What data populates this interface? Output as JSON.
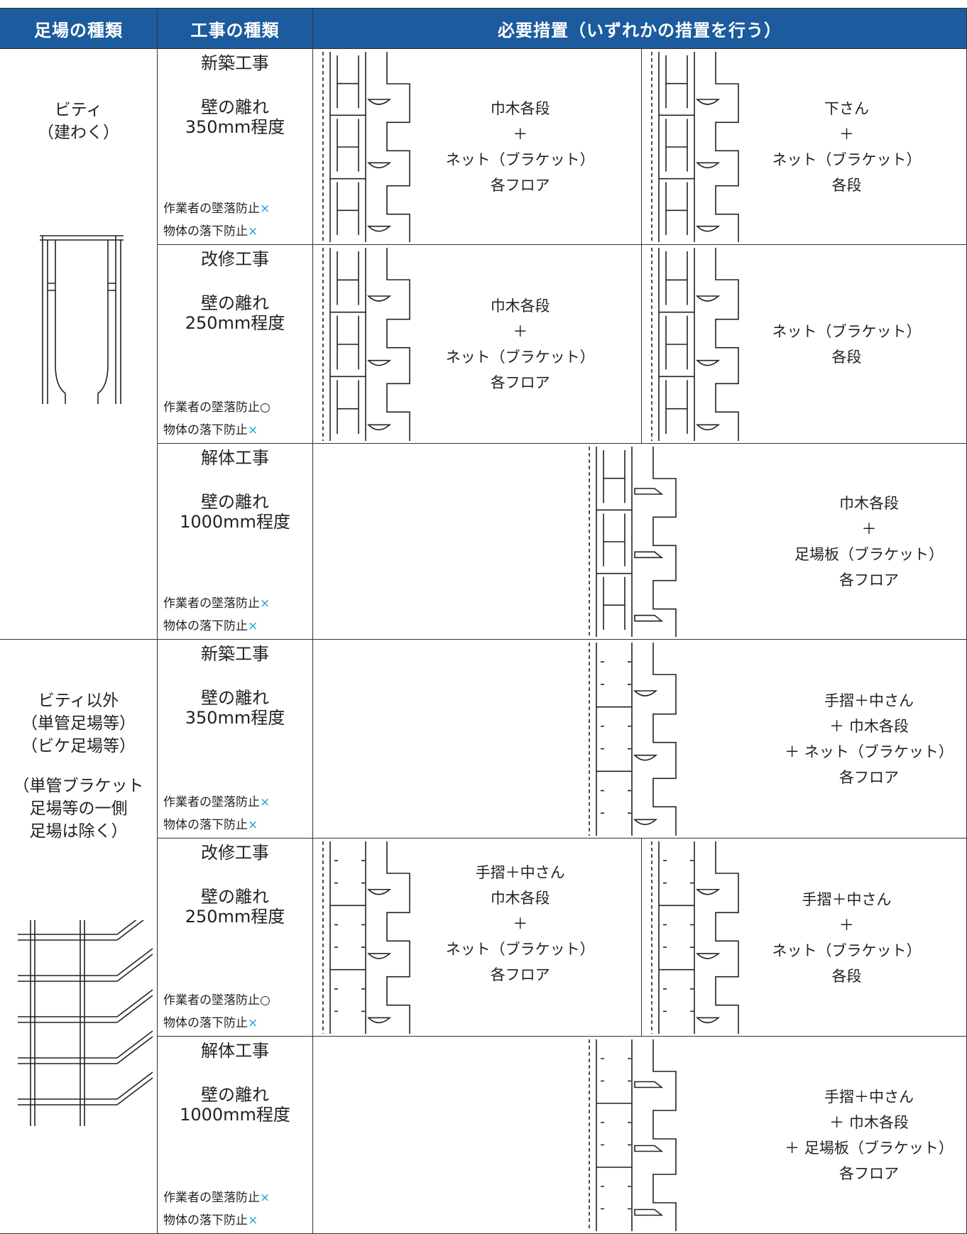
{
  "header": {
    "scaffold_type": "足場の種類",
    "work_type": "工事の種類",
    "measures": "必要措置（いずれかの措置を行う）"
  },
  "groups": [
    {
      "scaffold": [
        [
          "ビティ",
          "（建わく）"
        ]
      ],
      "rows": [
        {
          "work": "新築工事",
          "gap_label": "壁の離れ",
          "gap": "350mm程度",
          "worker": "作業者の墜落防止",
          "worker_mark": "×",
          "object": "物体の落下防止",
          "object_mark": "×",
          "measures": [
            [
              "巾木各段",
              "＋",
              "ネット（ブラケット）",
              "各フロア"
            ],
            [
              "下さん",
              "＋",
              "ネット（ブラケット）",
              "各段"
            ]
          ]
        },
        {
          "work": "改修工事",
          "gap_label": "壁の離れ",
          "gap": "250mm程度",
          "worker": "作業者の墜落防止",
          "worker_mark": "○",
          "object": "物体の落下防止",
          "object_mark": "×",
          "measures": [
            [
              "巾木各段",
              "＋",
              "ネット（ブラケット）",
              "各フロア"
            ],
            [
              "ネット（ブラケット）",
              "各段"
            ]
          ]
        },
        {
          "work": "解体工事",
          "gap_label": "壁の離れ",
          "gap": "1000mm程度",
          "worker": "作業者の墜落防止",
          "worker_mark": "×",
          "object": "物体の落下防止",
          "object_mark": "×",
          "measures": [
            [
              "巾木各段",
              "＋",
              "足場板（ブラケット）",
              "各フロア"
            ]
          ]
        }
      ]
    },
    {
      "scaffold": [
        [
          "ビティ以外",
          "（単管足場等）",
          "（ビケ足場等）"
        ],
        [
          "（単管ブラケット",
          "足場等の一側",
          "足場は除く）"
        ]
      ],
      "rows": [
        {
          "work": "新築工事",
          "gap_label": "壁の離れ",
          "gap": "350mm程度",
          "worker": "作業者の墜落防止",
          "worker_mark": "×",
          "object": "物体の落下防止",
          "object_mark": "×",
          "measures": [
            [
              "手摺＋中さん",
              "＋ 巾木各段",
              "＋ ネット（ブラケット）",
              "各フロア"
            ]
          ]
        },
        {
          "work": "改修工事",
          "gap_label": "壁の離れ",
          "gap": "250mm程度",
          "worker": "作業者の墜落防止",
          "worker_mark": "○",
          "object": "物体の落下防止",
          "object_mark": "×",
          "measures": [
            [
              "手摺＋中さん",
              "巾木各段",
              "＋",
              "ネット（ブラケット）",
              "各フロア"
            ],
            [
              "手摺＋中さん",
              "＋",
              "ネット（ブラケット）",
              "各段"
            ]
          ]
        },
        {
          "work": "解体工事",
          "gap_label": "壁の離れ",
          "gap": "1000mm程度",
          "worker": "作業者の墜落防止",
          "worker_mark": "×",
          "object": "物体の落下防止",
          "object_mark": "×",
          "measures": [
            [
              "手摺＋中さん",
              "＋ 巾木各段",
              "＋ 足場板（ブラケット）",
              "各フロア"
            ]
          ]
        }
      ]
    }
  ]
}
